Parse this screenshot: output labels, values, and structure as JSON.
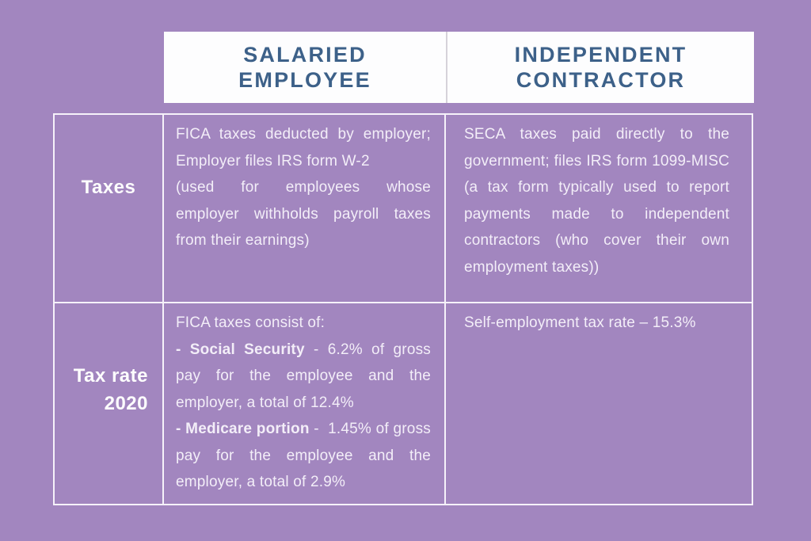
{
  "colors": {
    "background": "#a286bf",
    "header_box_bg": "#fdfdfe",
    "header_seam": "#d6d2da",
    "header_text": "#3d6189",
    "body_text": "#f3eef8",
    "label_text": "#fdfdfd",
    "grid_border": "#f6f2fa"
  },
  "header": {
    "salaried": "SALARIED\nEMPLOYEE",
    "contractor": "INDEPENDENT\nCONTRACTOR"
  },
  "rows": [
    {
      "label": "Taxes",
      "salaried": {
        "p1": "FICA taxes deducted by employer; Employer files IRS form W-2",
        "p2": "(used for employees whose employer withholds payroll taxes from their earnings)"
      },
      "contractor": {
        "p1": "SECA taxes paid directly to the government; files IRS form 1099-MISC (a tax form typically used to report payments made to independent contractors (who cover their own employment taxes))"
      }
    },
    {
      "label": "Tax rate\n2020",
      "salaried": {
        "p1": "FICA taxes consist of:",
        "p2_bold": "- Social Security",
        "p2_rest": " - 6.2% of gross pay for the employee and the employer, a total of 12.4%",
        "p3_bold": "- Medicare portion",
        "p3_rest": " -  1.45% of gross pay for the employee and the employer, a total of 2.9%"
      },
      "contractor": {
        "p1": "Self-employment tax rate – 15.3%"
      }
    }
  ],
  "chart_data": {
    "type": "table",
    "columns": [
      "",
      "SALARIED EMPLOYEE",
      "INDEPENDENT CONTRACTOR"
    ],
    "rows": [
      [
        "Taxes",
        "FICA taxes deducted by employer; Employer files IRS form W-2 (used for employees whose employer withholds payroll taxes from their earnings)",
        "SECA taxes paid directly to the government; files IRS form 1099-MISC (a tax form typically used to report payments made to independent contractors (who cover their own employment taxes))"
      ],
      [
        "Tax rate 2020",
        "FICA taxes consist of: - Social Security - 6.2% of gross pay for the employee and the employer, a total of 12.4%; - Medicare portion - 1.45% of gross pay for the employee and the employer, a total of 2.9%",
        "Self-employment tax rate – 15.3%"
      ]
    ]
  }
}
